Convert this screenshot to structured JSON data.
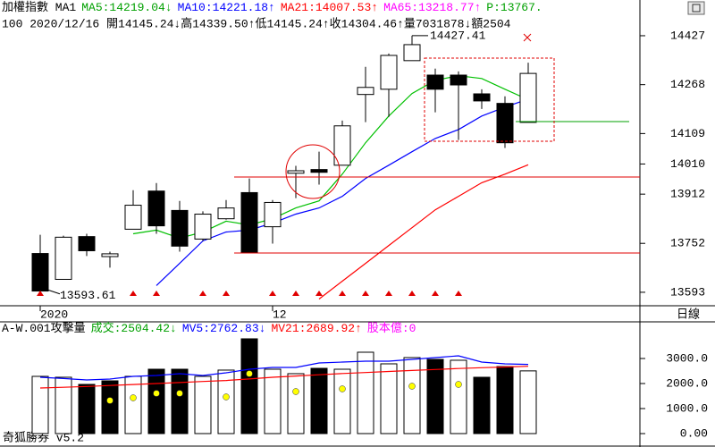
{
  "chart_data": [
    {
      "type": "candlestick",
      "legend": [
        {
          "text": "加權指數 MA1",
          "color": "#000000"
        },
        {
          "text": "MA5:14219.04↓",
          "color": "#00a000"
        },
        {
          "text": "MA10:14221.18↑",
          "color": "#0000ff"
        },
        {
          "text": "MA21:14007.53↑",
          "color": "#ff0000"
        },
        {
          "text": "MA65:13218.77↑",
          "color": "#ff00ff"
        },
        {
          "text": "P:13767.",
          "color": "#00a000"
        }
      ],
      "info": "100 2020/12/16 開14145.24↓高14339.50↑低14145.24↑收14304.46↑量7031878↓額2504",
      "categories": [
        "2020",
        null,
        null,
        null,
        null,
        null,
        null,
        null,
        null,
        null,
        "12",
        null,
        null,
        null,
        null,
        null,
        null,
        null,
        null,
        null,
        null,
        null
      ],
      "open": [
        13719,
        13635,
        13774,
        13709,
        13798,
        13922,
        13859,
        13766,
        13832,
        13917,
        13806,
        13980,
        13992,
        14006,
        14236,
        14253,
        14346,
        14299,
        14299,
        14238,
        14207,
        14145.24
      ],
      "high": [
        13780,
        13777,
        13783,
        13725,
        13925,
        13948,
        13890,
        13856,
        13893,
        13963,
        13893,
        14004,
        14050,
        14151,
        14326,
        14369,
        14427.41,
        14320,
        14311,
        14253,
        14230,
        14339.5
      ],
      "low": [
        13593.61,
        13635,
        13711,
        13673,
        13798,
        13783,
        13725,
        13760,
        13829,
        13722,
        13751,
        13899,
        13943,
        14006,
        14146,
        14163,
        14346,
        14178,
        14088,
        14189,
        14062,
        14145.24
      ],
      "close": [
        13597,
        13772,
        13728,
        13718,
        13876,
        13809,
        13743,
        13847,
        13867,
        13722,
        13885,
        13988,
        13983,
        14134,
        14259,
        14363,
        14398,
        14253,
        14267,
        14215,
        14079,
        14304.46
      ],
      "series": [
        {
          "color": "#00c000",
          "values": [
            null,
            null,
            null,
            null,
            13783,
            13795,
            13769,
            13789,
            13824,
            13812,
            13832,
            13867,
            13890,
            13977,
            14079,
            14166,
            14239,
            14282,
            14297,
            14288,
            14253,
            14219.04
          ]
        },
        {
          "color": "#0000ff",
          "values": [
            null,
            null,
            null,
            null,
            null,
            13615,
            13687,
            13760,
            13789,
            13795,
            13818,
            13847,
            13867,
            13905,
            13963,
            14006,
            14050,
            14093,
            14122,
            14166,
            14195,
            14221.18
          ]
        },
        {
          "color": "#ff0000",
          "values": [
            null,
            null,
            null,
            null,
            null,
            null,
            null,
            null,
            null,
            null,
            null,
            null,
            13571,
            13629,
            13687,
            13745,
            13803,
            13861,
            13905,
            13949,
            13977,
            14007.53
          ]
        }
      ],
      "signals": [
        true,
        false,
        false,
        false,
        true,
        true,
        false,
        true,
        true,
        false,
        true,
        true,
        true,
        true,
        true,
        true,
        true,
        true,
        true,
        false,
        false,
        false
      ],
      "ylim": [
        13555,
        14485
      ],
      "yticks": [
        13593,
        13752,
        13912,
        14010,
        14109,
        14268,
        14427
      ]
    },
    {
      "type": "bar",
      "legend": [
        {
          "text": "A-W.001攻擊量",
          "color": "#000000"
        },
        {
          "text": "成交:2504.42↓",
          "color": "#00a000"
        },
        {
          "text": "MV5:2762.83↓",
          "color": "#0000ff"
        },
        {
          "text": "MV21:2689.92↑",
          "color": "#ff0000"
        },
        {
          "text": "股本億:0",
          "color": "#ff00ff"
        }
      ],
      "values": [
        2286,
        2250,
        1964,
        2107,
        2286,
        2571,
        2571,
        2286,
        2536,
        3786,
        2571,
        2393,
        2607,
        2571,
        3250,
        2786,
        3036,
        2964,
        2929,
        2250,
        2679,
        2504.42
      ],
      "colors": [
        "#ffffff",
        "#ffffff",
        "#000000",
        "#000000",
        "#ffffff",
        "#000000",
        "#000000",
        "#ffffff",
        "#ffffff",
        "#000000",
        "#ffffff",
        "#ffffff",
        "#000000",
        "#ffffff",
        "#ffffff",
        "#ffffff",
        "#ffffff",
        "#000000",
        "#ffffff",
        "#000000",
        "#000000",
        "#ffffff"
      ],
      "series": [
        {
          "color": "#0000ff",
          "values": [
            2250,
            2200,
            2143,
            2179,
            2286,
            2321,
            2393,
            2321,
            2429,
            2571,
            2643,
            2643,
            2821,
            2857,
            2893,
            2893,
            2964,
            3036,
            3107,
            2857,
            2786,
            2762.83
          ]
        },
        {
          "color": "#ff0000",
          "values": [
            1821,
            1850,
            1880,
            1920,
            1960,
            2000,
            2040,
            2080,
            2120,
            2180,
            2250,
            2300,
            2350,
            2400,
            2440,
            2480,
            2520,
            2560,
            2600,
            2630,
            2660,
            2689.92
          ]
        }
      ],
      "points": {
        "color": "#ffff00",
        "values": [
          null,
          null,
          null,
          1321,
          1429,
          1607,
          1607,
          null,
          1464,
          2393,
          null,
          1679,
          null,
          1786,
          null,
          null,
          1893,
          null,
          1964,
          null,
          null,
          null
        ]
      },
      "ylim": [
        -429,
        3821
      ],
      "yticks": [
        {
          "value": 0,
          "label": "0.00"
        },
        {
          "value": 1000,
          "label": "1000.0"
        },
        {
          "value": 2000,
          "label": "2000.0"
        },
        {
          "value": 3000,
          "label": "3000.0"
        }
      ]
    }
  ],
  "period": "日線",
  "footer": "奇狐勝券 v5.2"
}
